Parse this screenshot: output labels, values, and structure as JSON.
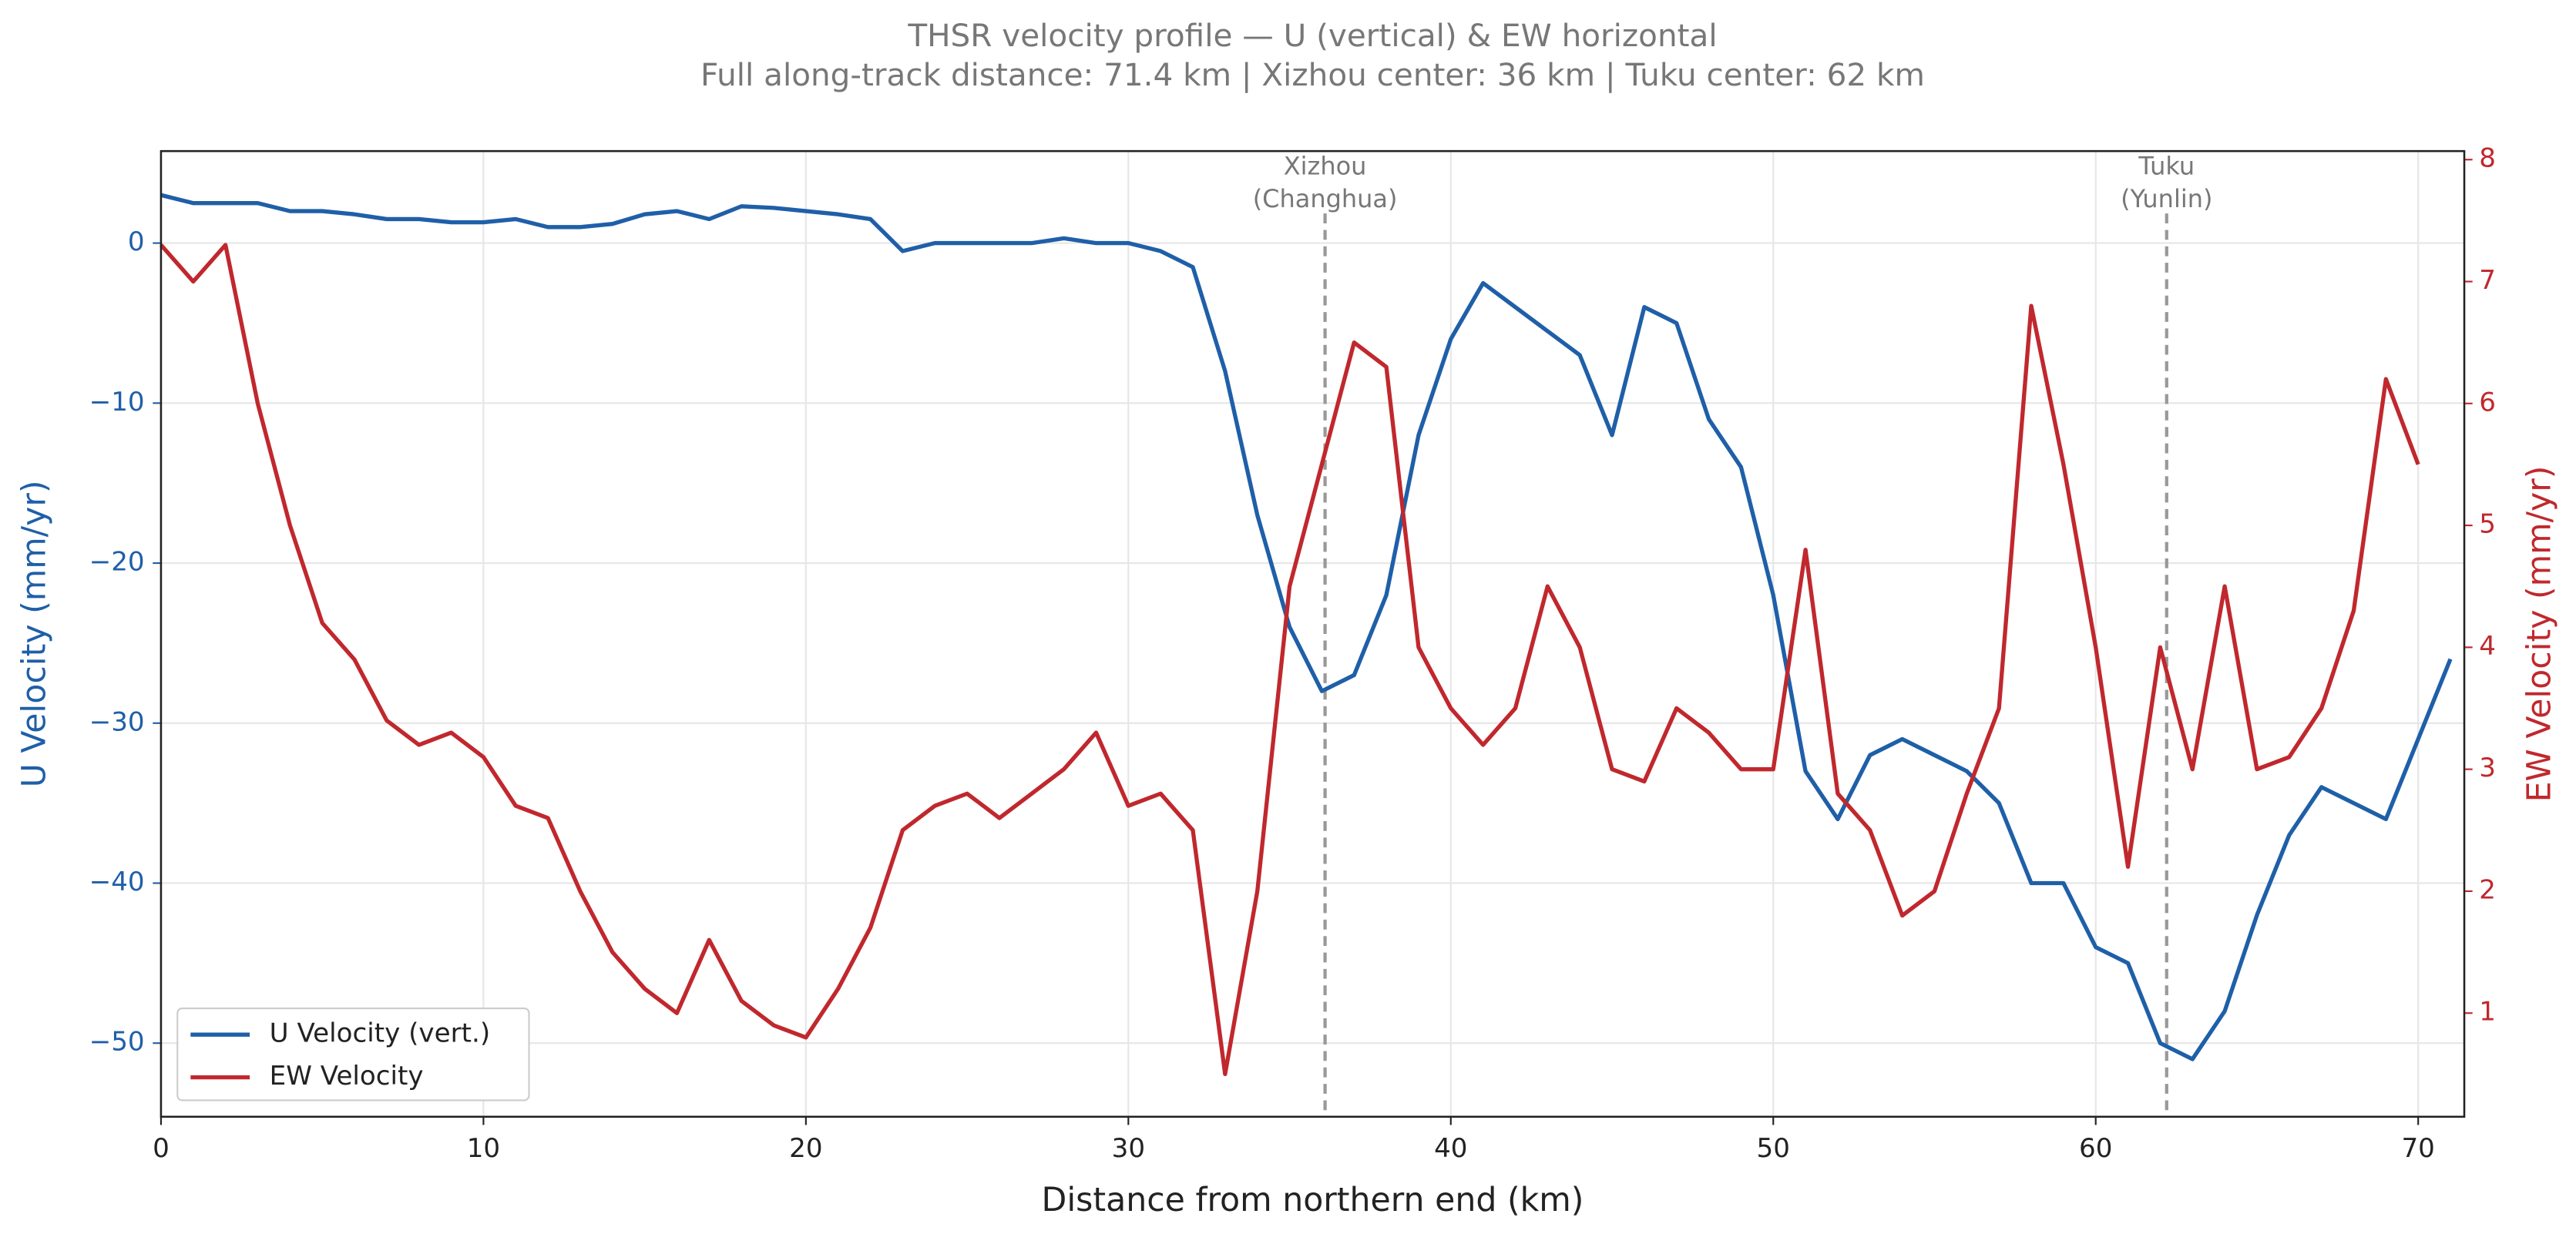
{
  "chart_data": {
    "type": "line",
    "title": "THSR velocity profile — U (vertical) & EW horizontal",
    "subtitle": "Full along-track distance: 71.4 km  |  Xizhou center: 36 km  |  Tuku center: 62 km",
    "x_label": "Distance from northern end (km)",
    "y_label": "U Velocity (mm/yr)",
    "y2_label": "EW Velocity (mm/yr)",
    "xlim": [
      0,
      71.43
    ],
    "ylim": [
      -54.6,
      5.75
    ],
    "y2lim": [
      0.15,
      8.07
    ],
    "xticks": [
      0,
      10,
      20,
      30,
      40,
      50,
      60,
      70
    ],
    "yticks": [
      {
        "value": -50,
        "label": "−50"
      },
      {
        "value": -40,
        "label": "−40"
      },
      {
        "value": -30,
        "label": "−30"
      },
      {
        "value": -20,
        "label": "−20"
      },
      {
        "value": -10,
        "label": "−10"
      },
      0
    ],
    "y2ticks": [
      1,
      2,
      3,
      4,
      5,
      6,
      7,
      8
    ],
    "grid": true,
    "legend": "lower left",
    "x": [
      0,
      1,
      2,
      3,
      4,
      5,
      6,
      7,
      8,
      9,
      10,
      11,
      12,
      13,
      14,
      15,
      16,
      17,
      18,
      19,
      20,
      21,
      22,
      23,
      24,
      25,
      26,
      27,
      28,
      29,
      30,
      31,
      32,
      33,
      34,
      35,
      36,
      37,
      38,
      39,
      40,
      41,
      42,
      43,
      44,
      45,
      46,
      47,
      48,
      49,
      50,
      51,
      52,
      53,
      54,
      55,
      56,
      57,
      58,
      59,
      60,
      61,
      62,
      63,
      64,
      65,
      66,
      67,
      68,
      69,
      70,
      71
    ],
    "series": [
      {
        "name": "U Velocity (vert.)",
        "color": "#1f5fa8",
        "axis": "y",
        "values": [
          3,
          2.5,
          2.5,
          2.5,
          2,
          2,
          1.8,
          1.5,
          1.5,
          1.3,
          1.3,
          1.5,
          1,
          1,
          1.2,
          1.8,
          2,
          1.5,
          2.3,
          2.2,
          2,
          1.8,
          1.5,
          -0.5,
          0,
          0,
          0,
          0,
          0.3,
          0,
          0,
          -0.5,
          -1.5,
          -8,
          -17,
          -24,
          -28,
          -27,
          -22,
          -12,
          -6,
          -2.5,
          -4,
          -5.5,
          -7,
          -12,
          -4,
          -5,
          -11,
          -14,
          -22,
          -33,
          -36,
          -32,
          -31,
          -32,
          -33,
          -35,
          -40,
          -40,
          -44,
          -45,
          -50,
          -51,
          -48,
          -42,
          -37,
          -34,
          -35,
          -36,
          -31,
          -26
        ]
      },
      {
        "name": "EW Velocity",
        "color": "#c0282d",
        "axis": "y2",
        "values": [
          7.3,
          7.0,
          7.3,
          6.0,
          5.0,
          4.2,
          3.9,
          3.4,
          3.2,
          3.3,
          3.1,
          2.7,
          2.6,
          2.0,
          1.5,
          1.2,
          1.0,
          1.6,
          1.1,
          0.9,
          0.8,
          1.2,
          1.7,
          2.5,
          2.7,
          2.8,
          2.6,
          2.8,
          3.0,
          3.3,
          2.7,
          2.8,
          2.5,
          0.5,
          2.0,
          4.5,
          5.5,
          6.5,
          6.3,
          4.0,
          3.5,
          3.2,
          3.5,
          4.5,
          4.0,
          3.0,
          2.9,
          3.5,
          3.3,
          3.0,
          3.0,
          4.8,
          2.8,
          2.5,
          1.8,
          2.0,
          2.8,
          3.5,
          6.8,
          5.5,
          4.0,
          2.2,
          4.0,
          3.0,
          4.5,
          3.0,
          3.1,
          3.5,
          4.3,
          6.2,
          5.5,
          null
        ]
      }
    ],
    "vlines": [
      {
        "x": 36.1,
        "label": [
          "Xizhou",
          "(Changhua)"
        ]
      },
      {
        "x": 62.2,
        "label": [
          "Tuku",
          "(Yunlin)"
        ]
      }
    ]
  }
}
